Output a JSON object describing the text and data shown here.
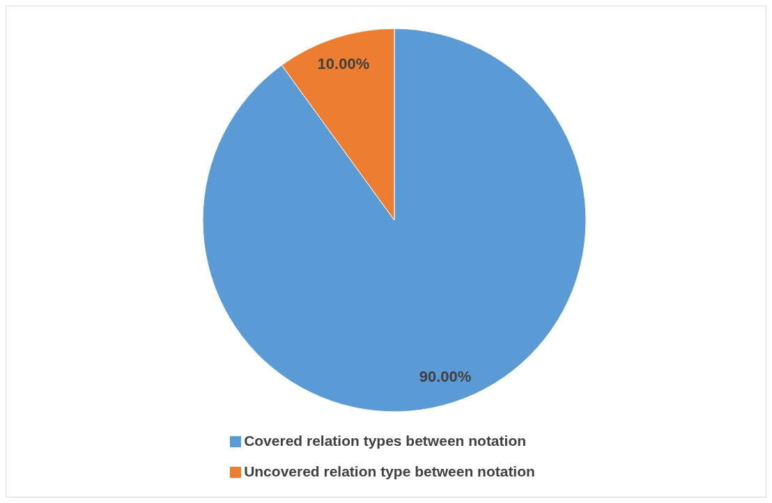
{
  "chart_data": {
    "type": "pie",
    "categories": [
      "Covered relation types between notation",
      "Uncovered relation type between notation"
    ],
    "values": [
      90,
      10
    ],
    "colors": [
      "#5b9bd5",
      "#ed7d31"
    ],
    "value_labels": [
      "90.00%",
      "10.00%"
    ],
    "legend": "bottom"
  }
}
